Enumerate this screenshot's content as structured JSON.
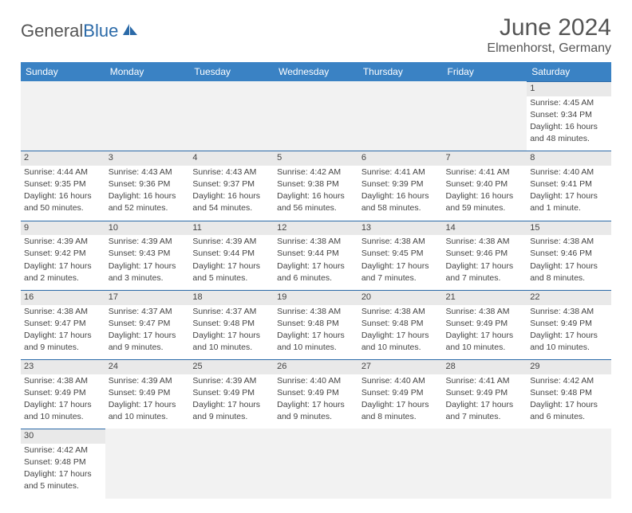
{
  "brand": {
    "part1": "General",
    "part2": "Blue"
  },
  "title": {
    "month": "June 2024",
    "location": "Elmenhorst, Germany"
  },
  "colors": {
    "header_bg": "#3a82c4",
    "header_text": "#ffffff",
    "border": "#2b6aa8",
    "daynum_bg": "#e9e9e9",
    "blank_bg": "#f2f2f2",
    "text": "#444444"
  },
  "dayNames": [
    "Sunday",
    "Monday",
    "Tuesday",
    "Wednesday",
    "Thursday",
    "Friday",
    "Saturday"
  ],
  "weeks": [
    [
      null,
      null,
      null,
      null,
      null,
      null,
      {
        "n": "1",
        "sr": "Sunrise: 4:45 AM",
        "ss": "Sunset: 9:34 PM",
        "d1": "Daylight: 16 hours",
        "d2": "and 48 minutes."
      }
    ],
    [
      {
        "n": "2",
        "sr": "Sunrise: 4:44 AM",
        "ss": "Sunset: 9:35 PM",
        "d1": "Daylight: 16 hours",
        "d2": "and 50 minutes."
      },
      {
        "n": "3",
        "sr": "Sunrise: 4:43 AM",
        "ss": "Sunset: 9:36 PM",
        "d1": "Daylight: 16 hours",
        "d2": "and 52 minutes."
      },
      {
        "n": "4",
        "sr": "Sunrise: 4:43 AM",
        "ss": "Sunset: 9:37 PM",
        "d1": "Daylight: 16 hours",
        "d2": "and 54 minutes."
      },
      {
        "n": "5",
        "sr": "Sunrise: 4:42 AM",
        "ss": "Sunset: 9:38 PM",
        "d1": "Daylight: 16 hours",
        "d2": "and 56 minutes."
      },
      {
        "n": "6",
        "sr": "Sunrise: 4:41 AM",
        "ss": "Sunset: 9:39 PM",
        "d1": "Daylight: 16 hours",
        "d2": "and 58 minutes."
      },
      {
        "n": "7",
        "sr": "Sunrise: 4:41 AM",
        "ss": "Sunset: 9:40 PM",
        "d1": "Daylight: 16 hours",
        "d2": "and 59 minutes."
      },
      {
        "n": "8",
        "sr": "Sunrise: 4:40 AM",
        "ss": "Sunset: 9:41 PM",
        "d1": "Daylight: 17 hours",
        "d2": "and 1 minute."
      }
    ],
    [
      {
        "n": "9",
        "sr": "Sunrise: 4:39 AM",
        "ss": "Sunset: 9:42 PM",
        "d1": "Daylight: 17 hours",
        "d2": "and 2 minutes."
      },
      {
        "n": "10",
        "sr": "Sunrise: 4:39 AM",
        "ss": "Sunset: 9:43 PM",
        "d1": "Daylight: 17 hours",
        "d2": "and 3 minutes."
      },
      {
        "n": "11",
        "sr": "Sunrise: 4:39 AM",
        "ss": "Sunset: 9:44 PM",
        "d1": "Daylight: 17 hours",
        "d2": "and 5 minutes."
      },
      {
        "n": "12",
        "sr": "Sunrise: 4:38 AM",
        "ss": "Sunset: 9:44 PM",
        "d1": "Daylight: 17 hours",
        "d2": "and 6 minutes."
      },
      {
        "n": "13",
        "sr": "Sunrise: 4:38 AM",
        "ss": "Sunset: 9:45 PM",
        "d1": "Daylight: 17 hours",
        "d2": "and 7 minutes."
      },
      {
        "n": "14",
        "sr": "Sunrise: 4:38 AM",
        "ss": "Sunset: 9:46 PM",
        "d1": "Daylight: 17 hours",
        "d2": "and 7 minutes."
      },
      {
        "n": "15",
        "sr": "Sunrise: 4:38 AM",
        "ss": "Sunset: 9:46 PM",
        "d1": "Daylight: 17 hours",
        "d2": "and 8 minutes."
      }
    ],
    [
      {
        "n": "16",
        "sr": "Sunrise: 4:38 AM",
        "ss": "Sunset: 9:47 PM",
        "d1": "Daylight: 17 hours",
        "d2": "and 9 minutes."
      },
      {
        "n": "17",
        "sr": "Sunrise: 4:37 AM",
        "ss": "Sunset: 9:47 PM",
        "d1": "Daylight: 17 hours",
        "d2": "and 9 minutes."
      },
      {
        "n": "18",
        "sr": "Sunrise: 4:37 AM",
        "ss": "Sunset: 9:48 PM",
        "d1": "Daylight: 17 hours",
        "d2": "and 10 minutes."
      },
      {
        "n": "19",
        "sr": "Sunrise: 4:38 AM",
        "ss": "Sunset: 9:48 PM",
        "d1": "Daylight: 17 hours",
        "d2": "and 10 minutes."
      },
      {
        "n": "20",
        "sr": "Sunrise: 4:38 AM",
        "ss": "Sunset: 9:48 PM",
        "d1": "Daylight: 17 hours",
        "d2": "and 10 minutes."
      },
      {
        "n": "21",
        "sr": "Sunrise: 4:38 AM",
        "ss": "Sunset: 9:49 PM",
        "d1": "Daylight: 17 hours",
        "d2": "and 10 minutes."
      },
      {
        "n": "22",
        "sr": "Sunrise: 4:38 AM",
        "ss": "Sunset: 9:49 PM",
        "d1": "Daylight: 17 hours",
        "d2": "and 10 minutes."
      }
    ],
    [
      {
        "n": "23",
        "sr": "Sunrise: 4:38 AM",
        "ss": "Sunset: 9:49 PM",
        "d1": "Daylight: 17 hours",
        "d2": "and 10 minutes."
      },
      {
        "n": "24",
        "sr": "Sunrise: 4:39 AM",
        "ss": "Sunset: 9:49 PM",
        "d1": "Daylight: 17 hours",
        "d2": "and 10 minutes."
      },
      {
        "n": "25",
        "sr": "Sunrise: 4:39 AM",
        "ss": "Sunset: 9:49 PM",
        "d1": "Daylight: 17 hours",
        "d2": "and 9 minutes."
      },
      {
        "n": "26",
        "sr": "Sunrise: 4:40 AM",
        "ss": "Sunset: 9:49 PM",
        "d1": "Daylight: 17 hours",
        "d2": "and 9 minutes."
      },
      {
        "n": "27",
        "sr": "Sunrise: 4:40 AM",
        "ss": "Sunset: 9:49 PM",
        "d1": "Daylight: 17 hours",
        "d2": "and 8 minutes."
      },
      {
        "n": "28",
        "sr": "Sunrise: 4:41 AM",
        "ss": "Sunset: 9:49 PM",
        "d1": "Daylight: 17 hours",
        "d2": "and 7 minutes."
      },
      {
        "n": "29",
        "sr": "Sunrise: 4:42 AM",
        "ss": "Sunset: 9:48 PM",
        "d1": "Daylight: 17 hours",
        "d2": "and 6 minutes."
      }
    ],
    [
      {
        "n": "30",
        "sr": "Sunrise: 4:42 AM",
        "ss": "Sunset: 9:48 PM",
        "d1": "Daylight: 17 hours",
        "d2": "and 5 minutes."
      },
      null,
      null,
      null,
      null,
      null,
      null
    ]
  ]
}
